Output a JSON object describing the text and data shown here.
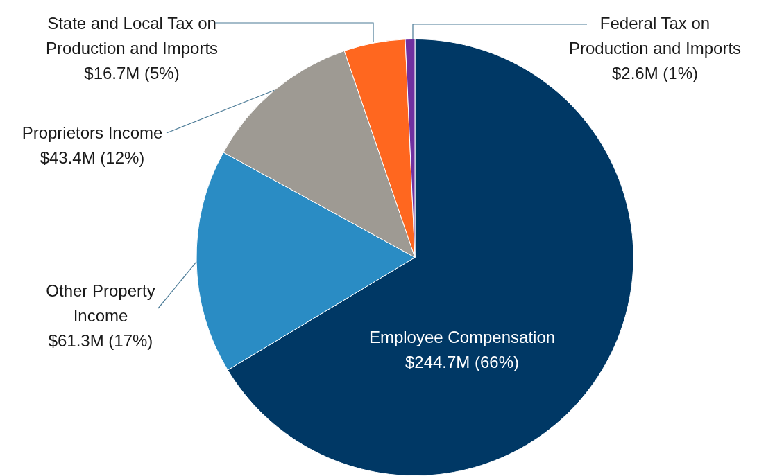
{
  "chart_data": {
    "type": "pie",
    "categories": [
      "Employee Compensation",
      "Other Property Income",
      "Proprietors Income",
      "State and Local Tax on Production and Imports",
      "Federal Tax on Production and Imports"
    ],
    "values": [
      244700000,
      61300000,
      43400000,
      16700000,
      2600000
    ],
    "value_labels": [
      "$244.7M (66%)",
      "$61.3M (17%)",
      "$43.4M (12%)",
      "$16.7M (5%)",
      "$2.6M (1%)"
    ],
    "colors": [
      "#003865",
      "#2a8cc4",
      "#9e9a93",
      "#ff671f",
      "#7030a0"
    ]
  }
}
